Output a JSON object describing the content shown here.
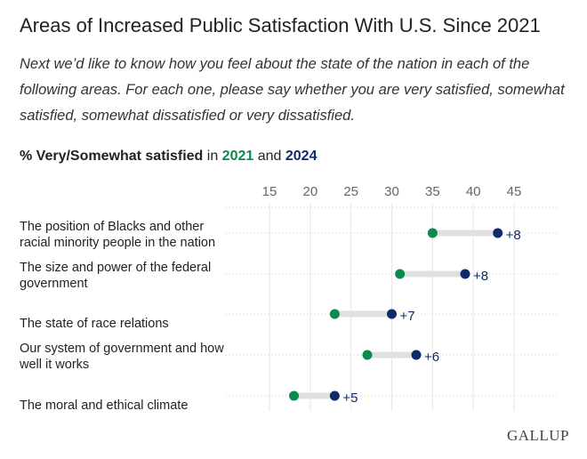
{
  "title": "Areas of Increased Public Satisfaction With U.S. Since 2021",
  "subtitle": "Next we’d like to know how you feel about the state of the nation in each of the following areas. For each one, please say whether you are very satisfied, somewhat satisfied, somewhat dissatisfied or very dissatisfied.",
  "legend": {
    "prefix": "% Very/Somewhat satisfied",
    "in": "in",
    "y1": "2021",
    "and": "and",
    "y2": "2024"
  },
  "logo": "GALLUP",
  "chart_data": {
    "type": "dumbbell",
    "xlim": [
      15,
      48
    ],
    "ticks": [
      15,
      20,
      25,
      30,
      35,
      40,
      45
    ],
    "tick_labels": [
      "15",
      "20",
      "25",
      "30",
      "35",
      "40",
      "45"
    ],
    "grid": true,
    "colors": {
      "2021": "#0a8a4f",
      "2024": "#0f2a6b"
    },
    "categories": [
      "The position of Blacks and other racial minority people in the nation",
      "The size and power of the federal government",
      "The state of race relations",
      "Our system of government and how well it works",
      "The moral and ethical climate"
    ],
    "series": [
      {
        "name": "2021",
        "values": [
          35,
          31,
          23,
          27,
          18
        ]
      },
      {
        "name": "2024",
        "values": [
          43,
          39,
          30,
          33,
          23
        ]
      }
    ],
    "change_labels": [
      "+8",
      "+8",
      "+7",
      "+6",
      "+5"
    ]
  }
}
